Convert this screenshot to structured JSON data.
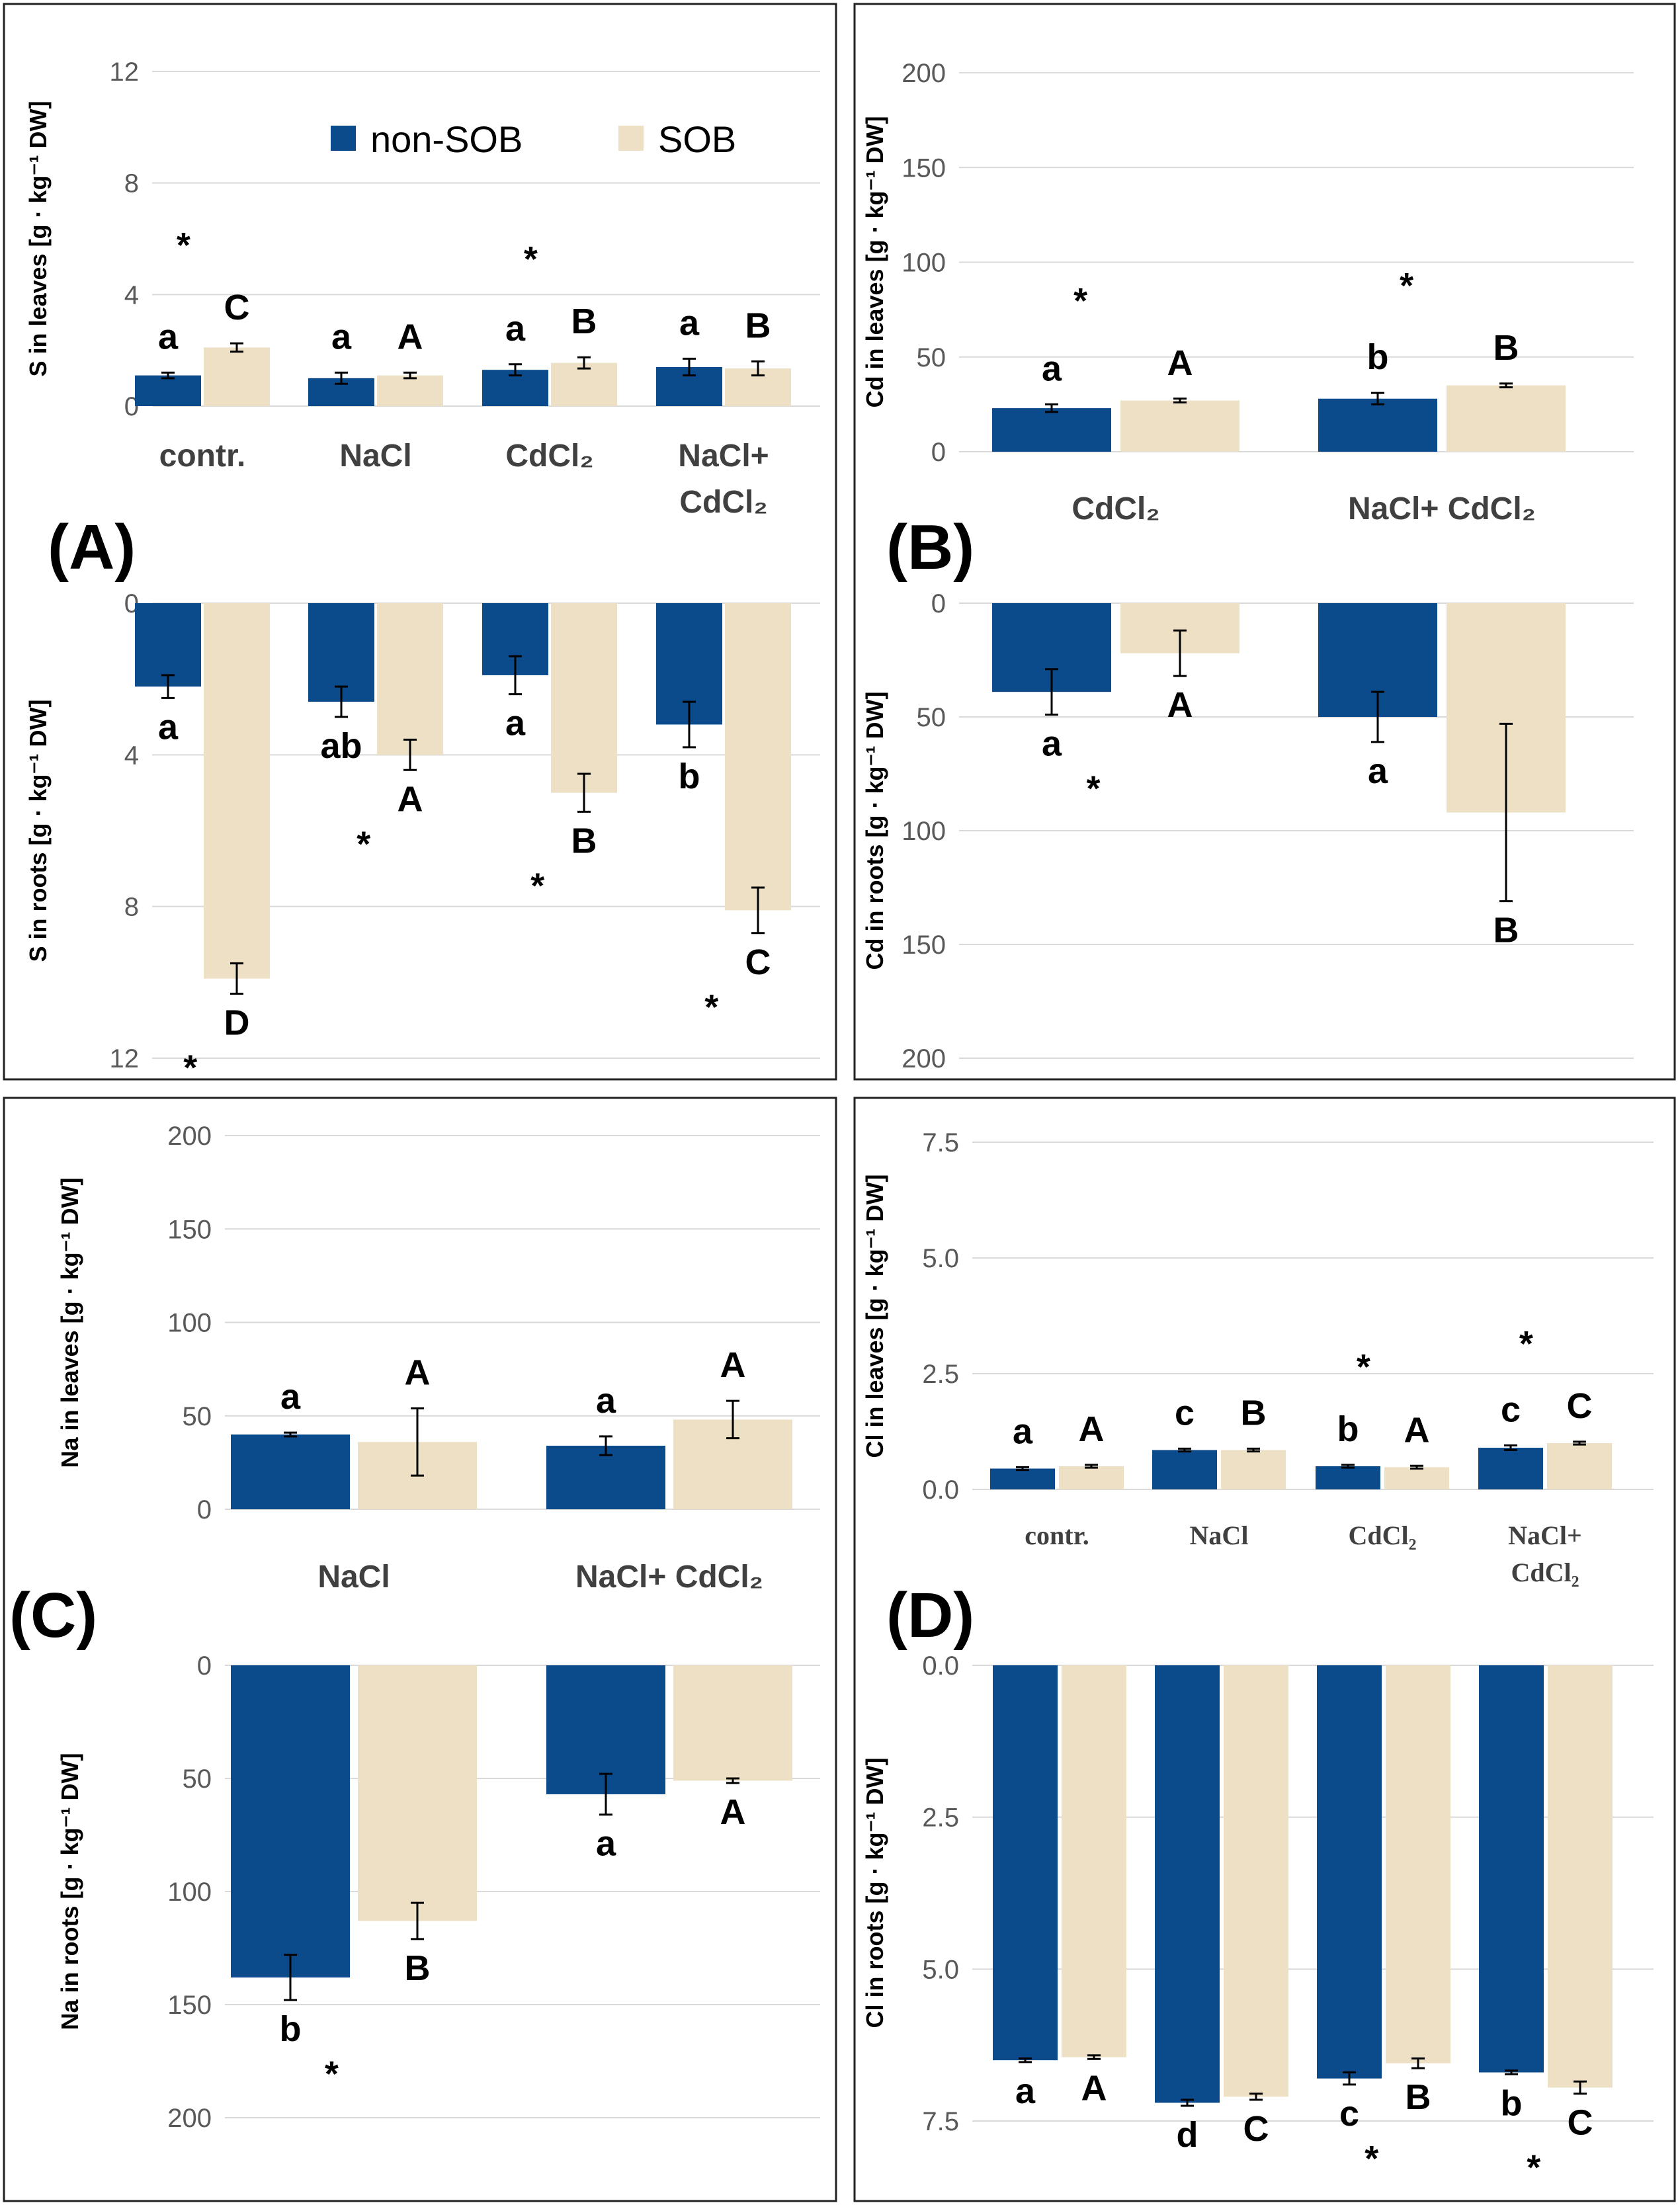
{
  "colors": {
    "non_sob": "#0b4a8b",
    "sob": "#ede0c4"
  },
  "legend": {
    "items": [
      "non-SOB",
      "SOB"
    ]
  },
  "chart_data": [
    {
      "id": "A_leaves",
      "panel": "A",
      "type": "bar",
      "orientation": "up",
      "ylabel": "S in leaves [g · kg⁻¹ DW]",
      "yticks": [
        0,
        4,
        8,
        12
      ],
      "ylim": [
        0,
        12
      ],
      "categories": [
        [
          "contr."
        ],
        [
          "NaCl"
        ],
        [
          "CdCl₂"
        ],
        [
          "NaCl+",
          "CdCl₂"
        ]
      ],
      "series": [
        {
          "name": "non-SOB",
          "values": [
            1.1,
            1.0,
            1.3,
            1.4
          ],
          "errors": [
            0.1,
            0.2,
            0.2,
            0.3
          ],
          "letters": [
            "a",
            "a",
            "a",
            "a"
          ]
        },
        {
          "name": "SOB",
          "values": [
            2.1,
            1.1,
            1.55,
            1.35
          ],
          "errors": [
            0.15,
            0.1,
            0.2,
            0.25
          ],
          "letters": [
            "C",
            "A",
            "B",
            "B"
          ]
        }
      ],
      "stars": [
        0,
        2
      ]
    },
    {
      "id": "A_roots",
      "panel": "A",
      "type": "bar",
      "orientation": "down",
      "ylabel": "S in roots [g · kg⁻¹ DW]",
      "yticks": [
        0,
        4,
        8,
        12
      ],
      "ylim": [
        0,
        12
      ],
      "series": [
        {
          "name": "non-SOB",
          "values": [
            2.2,
            2.6,
            1.9,
            3.2
          ],
          "errors": [
            0.3,
            0.4,
            0.5,
            0.6
          ],
          "letters": [
            "a",
            "ab",
            "a",
            "b"
          ]
        },
        {
          "name": "SOB",
          "values": [
            9.9,
            4.0,
            5.0,
            8.1
          ],
          "errors": [
            0.4,
            0.4,
            0.5,
            0.6
          ],
          "letters": [
            "D",
            "A",
            "B",
            "C"
          ]
        }
      ],
      "stars": [
        0,
        1,
        2,
        3
      ]
    },
    {
      "id": "B_leaves",
      "panel": "B",
      "type": "bar",
      "orientation": "up",
      "ylabel": "Cd in leaves [g · kg⁻¹ DW]",
      "yticks": [
        0,
        50,
        100,
        150,
        200
      ],
      "ylim": [
        0,
        200
      ],
      "categories": [
        [
          "CdCl₂"
        ],
        [
          "NaCl+ CdCl₂"
        ]
      ],
      "series": [
        {
          "name": "non-SOB",
          "values": [
            23,
            28
          ],
          "errors": [
            2,
            3
          ],
          "letters": [
            "a",
            "b"
          ]
        },
        {
          "name": "SOB",
          "values": [
            27,
            35
          ],
          "errors": [
            1,
            1
          ],
          "letters": [
            "A",
            "B"
          ]
        }
      ],
      "stars": [
        0,
        1
      ]
    },
    {
      "id": "B_roots",
      "panel": "B",
      "type": "bar",
      "orientation": "down",
      "ylabel": "Cd in roots [g · kg⁻¹ DW]",
      "yticks": [
        0,
        50,
        100,
        150,
        200
      ],
      "ylim": [
        0,
        200
      ],
      "series": [
        {
          "name": "non-SOB",
          "values": [
            39,
            50
          ],
          "errors": [
            10,
            11
          ],
          "letters": [
            "a",
            "a"
          ]
        },
        {
          "name": "SOB",
          "values": [
            22,
            92
          ],
          "errors": [
            10,
            39
          ],
          "letters": [
            "A",
            "B"
          ]
        }
      ],
      "stars": [
        0
      ]
    },
    {
      "id": "C_leaves",
      "panel": "C",
      "type": "bar",
      "orientation": "up",
      "ylabel": "Na in leaves [g · kg⁻¹ DW]",
      "yticks": [
        0,
        50,
        100,
        150,
        200
      ],
      "ylim": [
        0,
        200
      ],
      "categories": [
        [
          "NaCl"
        ],
        [
          "NaCl+ CdCl₂"
        ]
      ],
      "series": [
        {
          "name": "non-SOB",
          "values": [
            40,
            34
          ],
          "errors": [
            1,
            5
          ],
          "letters": [
            "a",
            "a"
          ]
        },
        {
          "name": "SOB",
          "values": [
            36,
            48
          ],
          "errors": [
            18,
            10
          ],
          "letters": [
            "A",
            "A"
          ]
        }
      ],
      "stars": []
    },
    {
      "id": "C_roots",
      "panel": "C",
      "type": "bar",
      "orientation": "down",
      "ylabel": "Na in roots [g · kg⁻¹ DW]",
      "yticks": [
        0,
        50,
        100,
        150,
        200
      ],
      "ylim": [
        0,
        200
      ],
      "series": [
        {
          "name": "non-SOB",
          "values": [
            138,
            57
          ],
          "errors": [
            10,
            9
          ],
          "letters": [
            "b",
            "a"
          ]
        },
        {
          "name": "SOB",
          "values": [
            113,
            51
          ],
          "errors": [
            8,
            1
          ],
          "letters": [
            "B",
            "A"
          ]
        }
      ],
      "stars": [
        0
      ]
    },
    {
      "id": "D_leaves",
      "panel": "D",
      "type": "bar",
      "orientation": "up",
      "ylabel": "Cl in leaves [g · kg⁻¹ DW]",
      "yticks": [
        "0.0",
        "2.5",
        "5.0",
        "7.5"
      ],
      "ylim": [
        0,
        7.5
      ],
      "categories": [
        [
          "contr."
        ],
        [
          "NaCl"
        ],
        [
          "CdCl₂"
        ],
        [
          "NaCl+",
          "CdCl₂"
        ]
      ],
      "series": [
        {
          "name": "non-SOB",
          "values": [
            0.45,
            0.85,
            0.5,
            0.9
          ],
          "errors": [
            0.03,
            0.03,
            0.03,
            0.05
          ],
          "letters": [
            "a",
            "c",
            "b",
            "c"
          ]
        },
        {
          "name": "SOB",
          "values": [
            0.5,
            0.85,
            0.48,
            1.0
          ],
          "errors": [
            0.03,
            0.03,
            0.03,
            0.03
          ],
          "letters": [
            "A",
            "B",
            "A",
            "C"
          ]
        }
      ],
      "stars": [
        2,
        3
      ]
    },
    {
      "id": "D_roots",
      "panel": "D",
      "type": "bar",
      "orientation": "down",
      "ylabel": "Cl in roots [g · kg⁻¹ DW]",
      "yticks": [
        "0.0",
        "2.5",
        "5.0",
        "7.5"
      ],
      "ylim": [
        0,
        7.5
      ],
      "series": [
        {
          "name": "non-SOB",
          "values": [
            6.5,
            7.2,
            6.8,
            6.7
          ],
          "errors": [
            0.03,
            0.05,
            0.1,
            0.03
          ],
          "letters": [
            "a",
            "d",
            "c",
            "b"
          ]
        },
        {
          "name": "SOB",
          "values": [
            6.45,
            7.1,
            6.55,
            6.95
          ],
          "errors": [
            0.03,
            0.05,
            0.08,
            0.1
          ],
          "letters": [
            "A",
            "C",
            "B",
            "C"
          ]
        }
      ],
      "stars": [
        2,
        3
      ]
    }
  ],
  "panel_labels": [
    "(A)",
    "(B)",
    "(C)",
    "(D)"
  ]
}
